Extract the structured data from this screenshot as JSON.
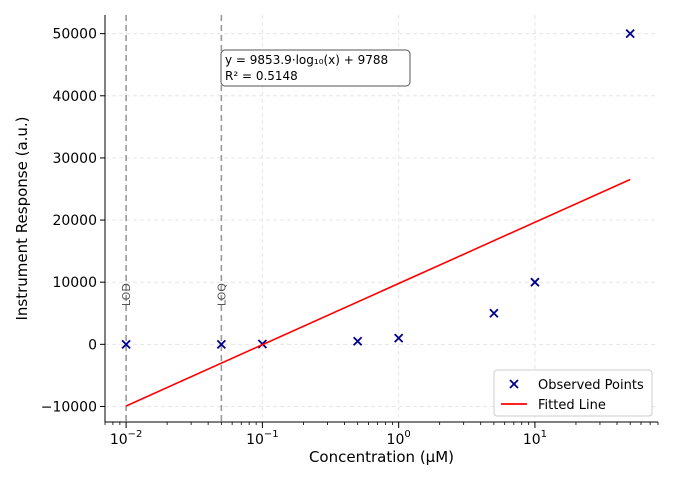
{
  "chart_data": {
    "type": "scatter",
    "xlabel": "Concentration (µM)",
    "ylabel": "Instrument Response (a.u.)",
    "xscale": "log",
    "xlim": [
      0.007,
      80
    ],
    "ylim": [
      -12500,
      53000
    ],
    "grid": true,
    "legend_position": "bottom-right",
    "x_ticks": [
      {
        "value": 0.01,
        "base": "10",
        "exp": "−2"
      },
      {
        "value": 0.1,
        "base": "10",
        "exp": "−1"
      },
      {
        "value": 1,
        "base": "10",
        "exp": "0"
      },
      {
        "value": 10,
        "base": "10",
        "exp": "1"
      }
    ],
    "y_ticks": [
      {
        "value": 50000,
        "label": "50000"
      },
      {
        "value": 40000,
        "label": "40000"
      },
      {
        "value": 30000,
        "label": "30000"
      },
      {
        "value": 20000,
        "label": "20000"
      },
      {
        "value": 10000,
        "label": "10000"
      },
      {
        "value": 0,
        "label": "0"
      },
      {
        "value": -10000,
        "label": "−10000"
      }
    ],
    "series": [
      {
        "name": "Observed Points",
        "kind": "scatter",
        "marker": "x",
        "color": "#00008b",
        "x": [
          0.01,
          0.05,
          0.1,
          0.5,
          1,
          5,
          10,
          50
        ],
        "y": [
          0,
          0,
          50,
          500,
          1000,
          5000,
          10000,
          50000
        ]
      },
      {
        "name": "Fitted Line",
        "kind": "line",
        "color": "#ff0000",
        "x": [
          0.01,
          50
        ],
        "y": [
          -9919.8,
          26530.3
        ]
      }
    ],
    "vlines": [
      {
        "x": 0.01,
        "label": "LOD",
        "color": "#999999"
      },
      {
        "x": 0.05,
        "label": "LOQ",
        "color": "#999999"
      }
    ],
    "annotation": {
      "line1": "y = 9853.9·log₁₀(x) + 9788",
      "line2": "R² = 0.5148"
    }
  }
}
